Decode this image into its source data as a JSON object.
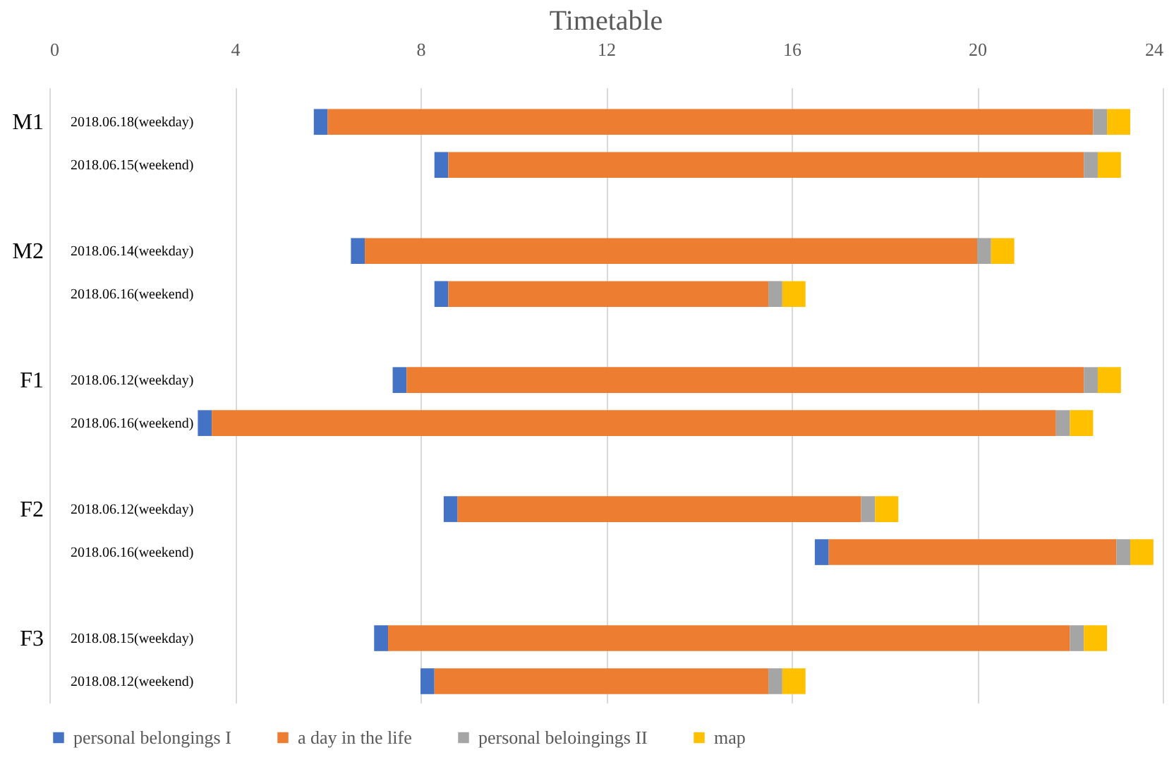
{
  "chart_data": {
    "type": "bar",
    "title": "Timetable",
    "orientation": "horizontal",
    "categories": [
      "2018.06.18(weekday)",
      "2018.06.15(weekend)",
      "2018.06.14(weekday)",
      "2018.06.16(weekend)",
      "2018.06.12(weekday)",
      "2018.06.16(weekend)",
      "2018.06.12(weekday)",
      "2018.06.16(weekend)",
      "2018.08.15(weekday)",
      "2018.08.12(weekend)"
    ],
    "series": [
      {
        "name": "personal belongings I",
        "color": "#4472c4",
        "base": [
          5.7,
          8.3,
          6.5,
          8.3,
          7.4,
          3.2,
          8.5,
          16.5,
          7.0,
          8.0
        ],
        "values": [
          0.3,
          0.3,
          0.3,
          0.3,
          0.3,
          0.3,
          0.3,
          0.3,
          0.3,
          0.3
        ]
      },
      {
        "name": "a day in the life",
        "color": "#ed7d31",
        "base": [
          6.0,
          8.6,
          6.8,
          8.6,
          7.7,
          3.5,
          8.8,
          16.8,
          7.3,
          8.3
        ],
        "values": [
          16.5,
          13.7,
          13.2,
          6.9,
          14.6,
          18.2,
          8.7,
          6.2,
          14.7,
          7.2
        ]
      },
      {
        "name": "personal beloingings II",
        "color": "#a5a5a5",
        "base": [
          22.5,
          22.3,
          20.0,
          15.5,
          22.3,
          21.7,
          17.5,
          23.0,
          22.0,
          15.5
        ],
        "values": [
          0.3,
          0.3,
          0.3,
          0.3,
          0.3,
          0.3,
          0.3,
          0.3,
          0.3,
          0.3
        ]
      },
      {
        "name": "map",
        "color": "#ffc000",
        "base": [
          22.8,
          22.6,
          20.3,
          15.8,
          22.6,
          22.0,
          17.8,
          23.3,
          22.3,
          15.8
        ],
        "values": [
          0.5,
          0.5,
          0.5,
          0.5,
          0.5,
          0.5,
          0.5,
          0.5,
          0.5,
          0.5
        ]
      }
    ],
    "xlim": [
      0,
      24
    ],
    "xticks": [
      0,
      4,
      8,
      12,
      16,
      20,
      24
    ],
    "grid": "x",
    "legend": "bottom",
    "annotations": [
      "M1",
      "M2",
      "F1",
      "F2",
      "F3"
    ]
  }
}
